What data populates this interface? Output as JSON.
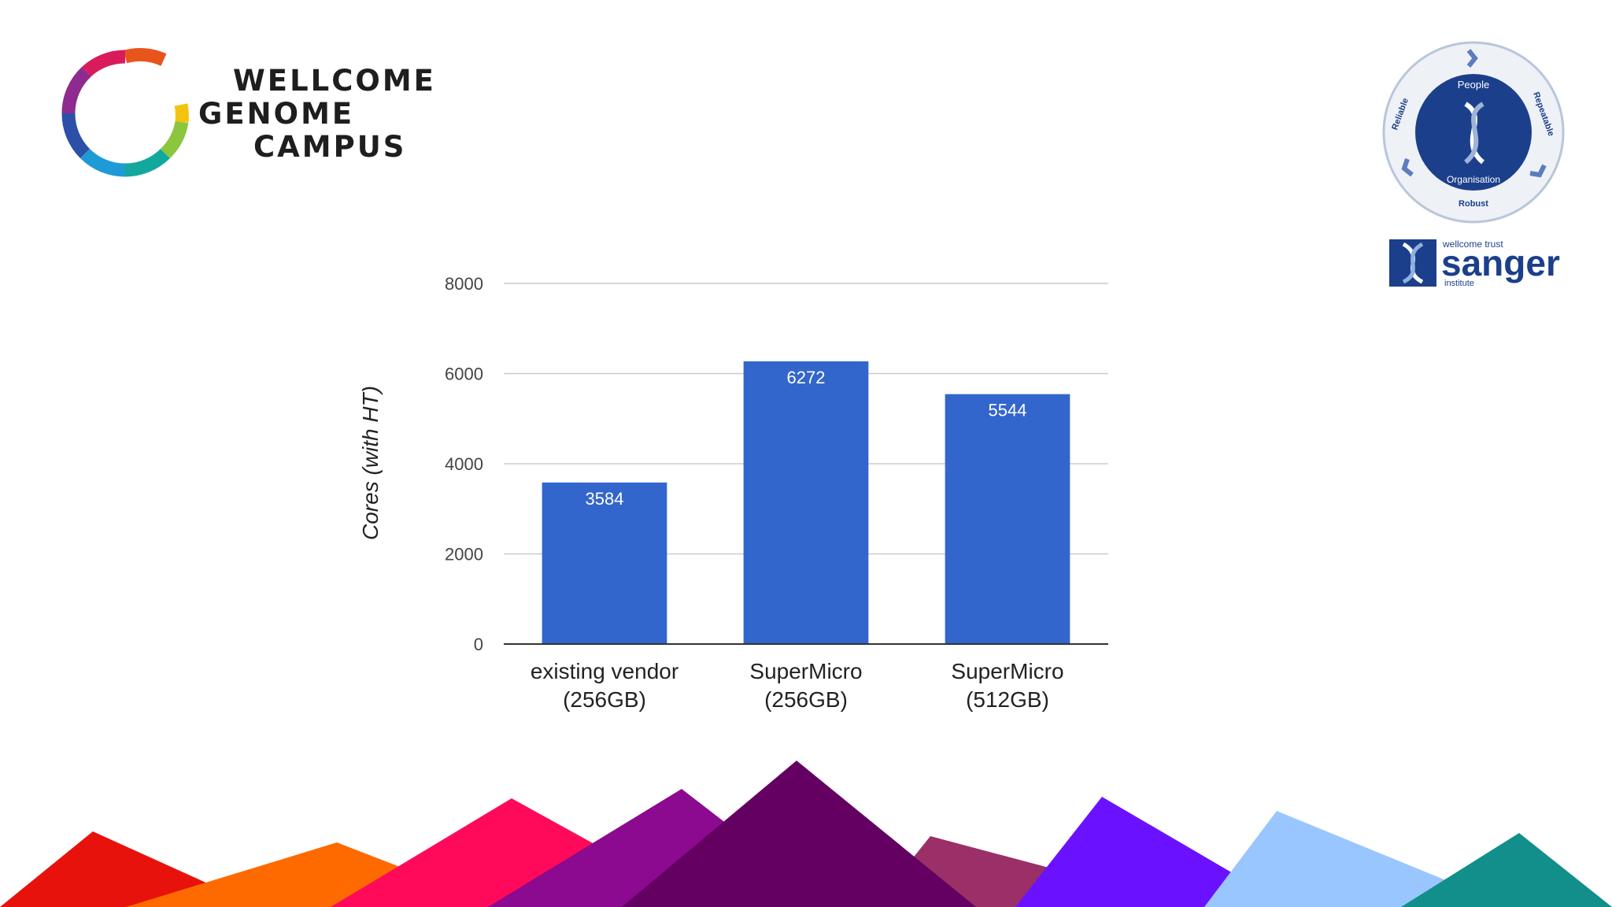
{
  "branding": {
    "campus_logo_words": [
      "WELLCOME",
      "GENOME",
      "CAMPUS"
    ],
    "badge_words": {
      "top": "People",
      "bottom": "Organisation",
      "left": "Reliable",
      "right": "Repeatable",
      "base": "Robust"
    },
    "sanger_logo": {
      "small_top": "wellcome trust",
      "main": "sanger",
      "small_bottom": "institute"
    }
  },
  "colors": {
    "bar": "#3366cc",
    "bar_label": "#ffffff",
    "gridline": "#cccccc",
    "axis": "#333333",
    "tick_text": "#444444",
    "sanger_blue": "#1b3f8b",
    "mountains": [
      "#e8120c",
      "#ff6a00",
      "#ff0a5a",
      "#8b0a8f",
      "#650063",
      "#9b2f68",
      "#6a12ff",
      "#99c6ff",
      "#128f8a"
    ]
  },
  "chart_data": {
    "type": "bar",
    "categories": [
      [
        "existing vendor",
        "(256GB)"
      ],
      [
        "SuperMicro",
        "(256GB)"
      ],
      [
        "SuperMicro",
        "(512GB)"
      ]
    ],
    "values": [
      3584,
      6272,
      5544
    ],
    "data_labels": [
      "3584",
      "6272",
      "5544"
    ],
    "title": "",
    "xlabel": "",
    "ylabel": "Cores (with HT)",
    "ylim": [
      0,
      8000
    ],
    "yticks": [
      0,
      2000,
      4000,
      6000,
      8000
    ],
    "grid": true,
    "legend": "none"
  }
}
